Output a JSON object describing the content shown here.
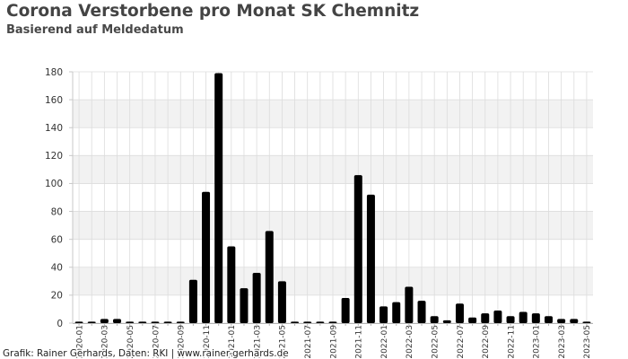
{
  "chart_data": {
    "type": "bar",
    "title": "Corona Verstorbene pro Monat SK Chemnitz",
    "subtitle": "Basierend auf Meldedatum",
    "xlabel": "",
    "ylabel": "",
    "x_tick_labels": [
      "2020-01",
      "2020-03",
      "2020-05",
      "2020-07",
      "2020-09",
      "2020-11",
      "2021-01",
      "2021-03",
      "2021-05",
      "2021-07",
      "2021-09",
      "2021-11",
      "2022-01",
      "2022-03",
      "2022-05",
      "2022-07",
      "2022-09",
      "2022-11",
      "2023-01",
      "2023-03",
      "2023-05"
    ],
    "months_per_x_tick": 2,
    "values": [
      0,
      0,
      3,
      3,
      0,
      0,
      0,
      0,
      0,
      31,
      94,
      179,
      55,
      25,
      36,
      66,
      30,
      1,
      0,
      1,
      1,
      18,
      106,
      92,
      12,
      15,
      26,
      16,
      5,
      2,
      14,
      4,
      7,
      9,
      5,
      8,
      7,
      5,
      3,
      3,
      0
    ],
    "ylim": [
      0,
      180
    ],
    "yticks": [
      0,
      20,
      40,
      60,
      80,
      100,
      120,
      140,
      160,
      180
    ],
    "grid": "on",
    "legend": "none",
    "colors": {
      "bar": "#000000",
      "band": "#f2f2f2",
      "grid": "#dcdcdc"
    }
  },
  "footer": "Grafik: Rainer Gerhards, Daten: RKI | www.rainer-gerhards.de"
}
